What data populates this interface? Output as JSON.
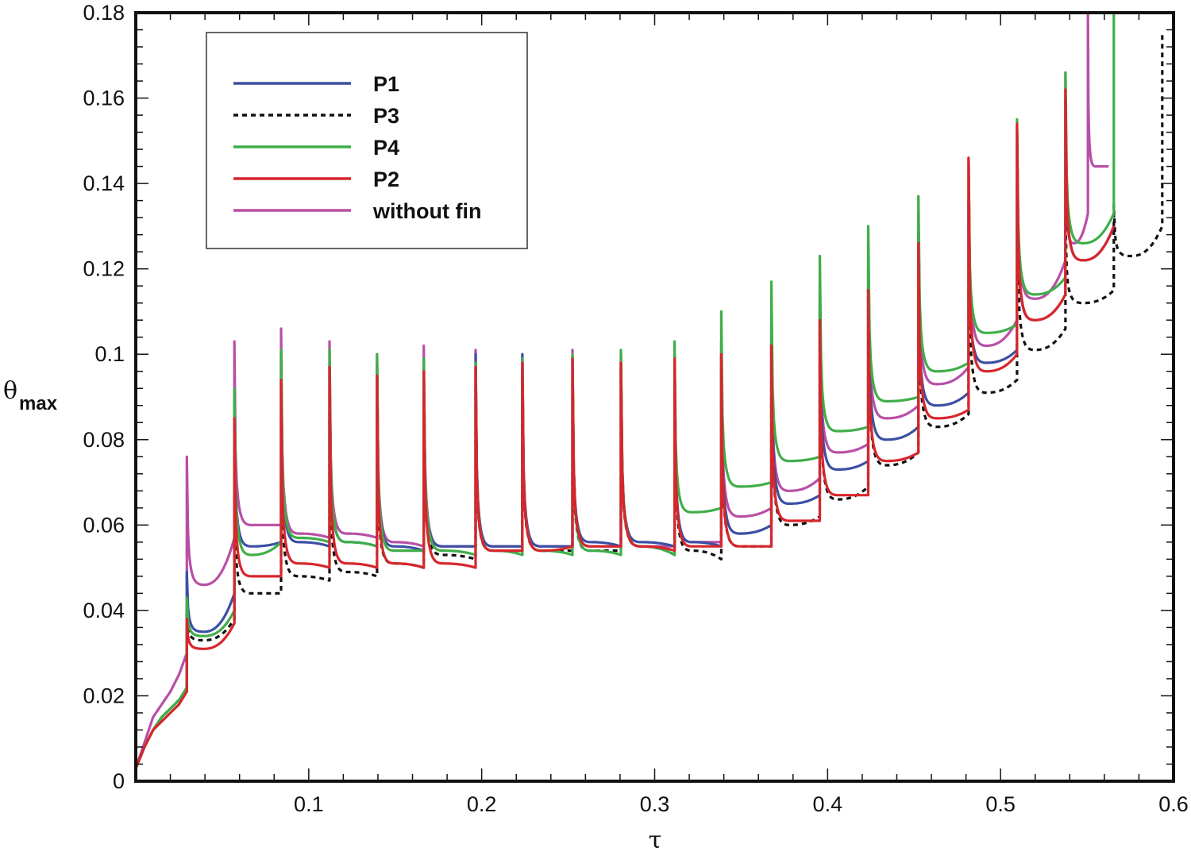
{
  "chart_data": {
    "type": "line",
    "title": "",
    "xlabel": "τ",
    "ylabel": "θ",
    "ylabel_subscript": "max",
    "xlim": [
      0,
      0.6
    ],
    "ylim": [
      0,
      0.18
    ],
    "xticks": [
      0.1,
      0.2,
      0.3,
      0.4,
      0.5,
      0.6
    ],
    "xtick_labels": [
      "0.1",
      "0.2",
      "0.3",
      "0.4",
      "0.5",
      "0.6"
    ],
    "yticks": [
      0,
      0.02,
      0.04,
      0.06,
      0.08,
      0.1,
      0.12,
      0.14,
      0.16,
      0.18
    ],
    "ytick_labels": [
      "0",
      "0.02",
      "0.04",
      "0.06",
      "0.08",
      "0.1",
      "0.12",
      "0.14",
      "0.16",
      "0.18"
    ],
    "grid": false,
    "legend_position": "top-left",
    "pulse_times": [
      0.0295,
      0.057,
      0.084,
      0.112,
      0.1395,
      0.1665,
      0.1965,
      0.2235,
      0.2525,
      0.2805,
      0.3115,
      0.3385,
      0.3675,
      0.3955,
      0.4235,
      0.4525,
      0.4815,
      0.5095,
      0.5375,
      0.5655,
      0.5935
    ],
    "series": [
      {
        "name": "P1",
        "color": "#3b4fa3",
        "dashed": false,
        "initial": [
          [
            0.0,
            0.003
          ],
          [
            0.005,
            0.008
          ],
          [
            0.01,
            0.012
          ],
          [
            0.015,
            0.015
          ],
          [
            0.02,
            0.017
          ],
          [
            0.025,
            0.019
          ],
          [
            0.0295,
            0.021
          ]
        ],
        "cycles": [
          [
            0.0295,
            0.049,
            0.042,
            0.035,
            0.044
          ],
          [
            0.057,
            0.09,
            0.062,
            0.055,
            0.056
          ],
          [
            0.084,
            0.099,
            0.068,
            0.056,
            0.055
          ],
          [
            0.112,
            0.098,
            0.066,
            0.056,
            0.055
          ],
          [
            0.1395,
            0.098,
            0.066,
            0.055,
            0.054
          ],
          [
            0.1665,
            0.097,
            0.064,
            0.055,
            0.055
          ],
          [
            0.1965,
            0.1,
            0.063,
            0.055,
            0.055
          ],
          [
            0.2235,
            0.1,
            0.062,
            0.055,
            0.055
          ],
          [
            0.2525,
            0.099,
            0.062,
            0.056,
            0.055
          ],
          [
            0.2805,
            0.098,
            0.062,
            0.056,
            0.055
          ],
          [
            0.3115,
            0.1,
            0.063,
            0.056,
            0.055
          ],
          [
            0.3385,
            0.1,
            0.065,
            0.058,
            0.06
          ],
          [
            0.3675,
            0.107,
            0.072,
            0.065,
            0.067
          ],
          [
            0.3955,
            0.114,
            0.08,
            0.073,
            0.075
          ],
          [
            0.4235,
            0.12,
            0.087,
            0.08,
            0.083
          ],
          [
            0.4525,
            0.124,
            0.095,
            0.088,
            0.091
          ],
          [
            0.4815,
            0.136,
            0.104,
            0.098,
            0.101
          ],
          [
            0.5095,
            0.15,
            0.115,
            0.108,
            0.114
          ],
          [
            0.5375,
            0.16,
            0.128,
            0.122,
            0.13
          ]
        ],
        "final": [
          0.5655,
          0.13
        ]
      },
      {
        "name": "P3",
        "color": "#111111",
        "dashed": true,
        "initial": [
          [
            0.0,
            0.003
          ],
          [
            0.005,
            0.008
          ],
          [
            0.01,
            0.012
          ],
          [
            0.015,
            0.015
          ],
          [
            0.02,
            0.017
          ],
          [
            0.025,
            0.019
          ],
          [
            0.0295,
            0.021
          ]
        ],
        "cycles": [
          [
            0.0295,
            0.04,
            0.036,
            0.033,
            0.038
          ],
          [
            0.057,
            0.072,
            0.05,
            0.044,
            0.044
          ],
          [
            0.084,
            0.085,
            0.058,
            0.048,
            0.047
          ],
          [
            0.112,
            0.086,
            0.058,
            0.049,
            0.048
          ],
          [
            0.1395,
            0.088,
            0.06,
            0.051,
            0.05
          ],
          [
            0.1665,
            0.09,
            0.062,
            0.053,
            0.052
          ],
          [
            0.1965,
            0.094,
            0.062,
            0.054,
            0.054
          ],
          [
            0.2235,
            0.095,
            0.062,
            0.054,
            0.054
          ],
          [
            0.2525,
            0.095,
            0.062,
            0.054,
            0.054
          ],
          [
            0.2805,
            0.096,
            0.061,
            0.055,
            0.053
          ],
          [
            0.3115,
            0.096,
            0.06,
            0.054,
            0.052
          ],
          [
            0.3385,
            0.097,
            0.063,
            0.055,
            0.055
          ],
          [
            0.3675,
            0.104,
            0.068,
            0.06,
            0.062
          ],
          [
            0.3955,
            0.11,
            0.074,
            0.066,
            0.069
          ],
          [
            0.4235,
            0.116,
            0.082,
            0.074,
            0.077
          ],
          [
            0.4525,
            0.122,
            0.09,
            0.083,
            0.086
          ],
          [
            0.4815,
            0.131,
            0.1,
            0.091,
            0.094
          ],
          [
            0.5095,
            0.14,
            0.108,
            0.101,
            0.106
          ],
          [
            0.5375,
            0.132,
            0.113,
            0.112,
            0.115
          ],
          [
            0.5655,
            0.135,
            0.125,
            0.123,
            0.13
          ]
        ],
        "final": [
          0.5935,
          0.175
        ]
      },
      {
        "name": "P4",
        "color": "#3fae49",
        "dashed": false,
        "initial": [
          [
            0.0,
            0.003
          ],
          [
            0.005,
            0.008
          ],
          [
            0.01,
            0.012
          ],
          [
            0.015,
            0.015
          ],
          [
            0.02,
            0.017
          ],
          [
            0.025,
            0.019
          ],
          [
            0.0295,
            0.022
          ]
        ],
        "cycles": [
          [
            0.0295,
            0.043,
            0.038,
            0.034,
            0.04
          ],
          [
            0.057,
            0.092,
            0.06,
            0.053,
            0.056
          ],
          [
            0.084,
            0.101,
            0.07,
            0.057,
            0.056
          ],
          [
            0.112,
            0.101,
            0.066,
            0.056,
            0.055
          ],
          [
            0.1395,
            0.1,
            0.065,
            0.054,
            0.054
          ],
          [
            0.1665,
            0.099,
            0.064,
            0.054,
            0.053
          ],
          [
            0.1965,
            0.098,
            0.063,
            0.054,
            0.053
          ],
          [
            0.2235,
            0.099,
            0.062,
            0.054,
            0.053
          ],
          [
            0.2525,
            0.1,
            0.062,
            0.054,
            0.053
          ],
          [
            0.2805,
            0.101,
            0.063,
            0.055,
            0.053
          ],
          [
            0.3115,
            0.103,
            0.07,
            0.063,
            0.064
          ],
          [
            0.3385,
            0.11,
            0.077,
            0.069,
            0.07
          ],
          [
            0.3675,
            0.117,
            0.083,
            0.075,
            0.076
          ],
          [
            0.3955,
            0.123,
            0.09,
            0.082,
            0.083
          ],
          [
            0.4235,
            0.13,
            0.097,
            0.089,
            0.09
          ],
          [
            0.4525,
            0.137,
            0.104,
            0.096,
            0.098
          ],
          [
            0.4815,
            0.145,
            0.112,
            0.105,
            0.107
          ],
          [
            0.5095,
            0.155,
            0.122,
            0.114,
            0.118
          ],
          [
            0.5375,
            0.166,
            0.133,
            0.126,
            0.133
          ]
        ],
        "final": [
          0.5655,
          0.18
        ]
      },
      {
        "name": "P2",
        "color": "#d7262b",
        "dashed": false,
        "initial": [
          [
            0.0,
            0.003
          ],
          [
            0.005,
            0.008
          ],
          [
            0.01,
            0.012
          ],
          [
            0.015,
            0.014
          ],
          [
            0.02,
            0.016
          ],
          [
            0.025,
            0.018
          ],
          [
            0.0295,
            0.021
          ]
        ],
        "cycles": [
          [
            0.0295,
            0.038,
            0.035,
            0.031,
            0.037
          ],
          [
            0.057,
            0.085,
            0.055,
            0.048,
            0.048
          ],
          [
            0.084,
            0.094,
            0.063,
            0.051,
            0.05
          ],
          [
            0.112,
            0.097,
            0.064,
            0.051,
            0.05
          ],
          [
            0.1395,
            0.095,
            0.063,
            0.051,
            0.05
          ],
          [
            0.1665,
            0.096,
            0.064,
            0.051,
            0.05
          ],
          [
            0.1965,
            0.097,
            0.064,
            0.054,
            0.054
          ],
          [
            0.2235,
            0.098,
            0.063,
            0.054,
            0.055
          ],
          [
            0.2525,
            0.099,
            0.063,
            0.055,
            0.055
          ],
          [
            0.2805,
            0.098,
            0.062,
            0.055,
            0.054
          ],
          [
            0.3115,
            0.099,
            0.062,
            0.055,
            0.055
          ],
          [
            0.3385,
            0.1,
            0.063,
            0.055,
            0.055
          ],
          [
            0.3675,
            0.102,
            0.067,
            0.061,
            0.061
          ],
          [
            0.3955,
            0.108,
            0.072,
            0.067,
            0.067
          ],
          [
            0.4235,
            0.115,
            0.079,
            0.075,
            0.077
          ],
          [
            0.4525,
            0.126,
            0.092,
            0.085,
            0.087
          ],
          [
            0.4815,
            0.146,
            0.103,
            0.096,
            0.1
          ],
          [
            0.5095,
            0.154,
            0.114,
            0.108,
            0.114
          ],
          [
            0.5375,
            0.162,
            0.128,
            0.122,
            0.13
          ]
        ],
        "final": [
          0.5655,
          0.13
        ]
      },
      {
        "name": "without fin",
        "color": "#b84fa6",
        "dashed": false,
        "initial": [
          [
            0.0,
            0.003
          ],
          [
            0.005,
            0.009
          ],
          [
            0.01,
            0.015
          ],
          [
            0.015,
            0.018
          ],
          [
            0.02,
            0.021
          ],
          [
            0.025,
            0.025
          ],
          [
            0.0295,
            0.03
          ]
        ],
        "cycles": [
          [
            0.0295,
            0.076,
            0.052,
            0.046,
            0.057
          ],
          [
            0.057,
            0.103,
            0.068,
            0.06,
            0.06
          ],
          [
            0.084,
            0.106,
            0.068,
            0.058,
            0.057
          ],
          [
            0.112,
            0.103,
            0.066,
            0.058,
            0.057
          ],
          [
            0.1395,
            0.1,
            0.066,
            0.056,
            0.055
          ],
          [
            0.1665,
            0.102,
            0.064,
            0.055,
            0.055
          ],
          [
            0.1965,
            0.101,
            0.064,
            0.055,
            0.055
          ],
          [
            0.2235,
            0.1,
            0.063,
            0.055,
            0.055
          ],
          [
            0.2525,
            0.101,
            0.063,
            0.055,
            0.055
          ],
          [
            0.2805,
            0.1,
            0.063,
            0.055,
            0.055
          ],
          [
            0.3115,
            0.1,
            0.063,
            0.056,
            0.056
          ],
          [
            0.3385,
            0.103,
            0.069,
            0.062,
            0.064
          ],
          [
            0.3675,
            0.109,
            0.074,
            0.068,
            0.071
          ],
          [
            0.3955,
            0.117,
            0.081,
            0.077,
            0.079
          ],
          [
            0.4235,
            0.126,
            0.09,
            0.085,
            0.088
          ],
          [
            0.4525,
            0.133,
            0.098,
            0.093,
            0.097
          ],
          [
            0.4815,
            0.146,
            0.106,
            0.102,
            0.108
          ],
          [
            0.5095,
            0.153,
            0.12,
            0.113,
            0.122
          ],
          [
            0.5375,
            0.166,
            0.133,
            0.126,
            0.133
          ],
          [
            0.5505,
            0.18,
            0.155,
            0.144,
            0.144
          ]
        ],
        "final": null
      }
    ]
  }
}
